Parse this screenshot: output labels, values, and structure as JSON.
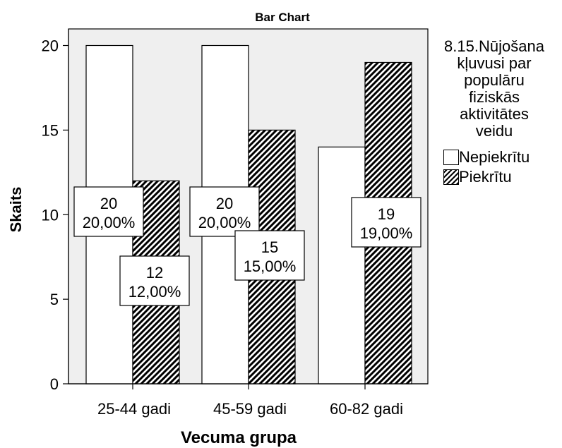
{
  "chart_data": {
    "type": "bar",
    "title": "Bar Chart",
    "xlabel": "Vecuma grupa",
    "ylabel": "Skaits",
    "categories": [
      "25-44 gadi",
      "45-59 gadi",
      "60-82 gadi"
    ],
    "ylim": [
      0,
      20
    ],
    "yticks": [
      0,
      5,
      10,
      15,
      20
    ],
    "grid": false,
    "legend_title": "8.15.Nūjošana kļuvusi par populāru fiziskās aktivitātes veidu",
    "legend_placement": "right",
    "series": [
      {
        "name": "Nepiekrītu",
        "style": "white",
        "values": [
          20,
          20,
          14
        ],
        "labels": [
          {
            "count": "20",
            "percent": "20,00%"
          },
          {
            "count": "20",
            "percent": "20,00%"
          },
          null
        ]
      },
      {
        "name": "Piekrītu",
        "style": "hatched",
        "values": [
          12,
          15,
          19
        ],
        "labels": [
          {
            "count": "12",
            "percent": "12,00%"
          },
          {
            "count": "15",
            "percent": "15,00%"
          },
          {
            "count": "19",
            "percent": "19,00%"
          }
        ]
      }
    ]
  },
  "colors": {
    "plot_background": "#efefef",
    "bar_fill_plain": "#ffffff",
    "hatch_line": "#000000"
  }
}
